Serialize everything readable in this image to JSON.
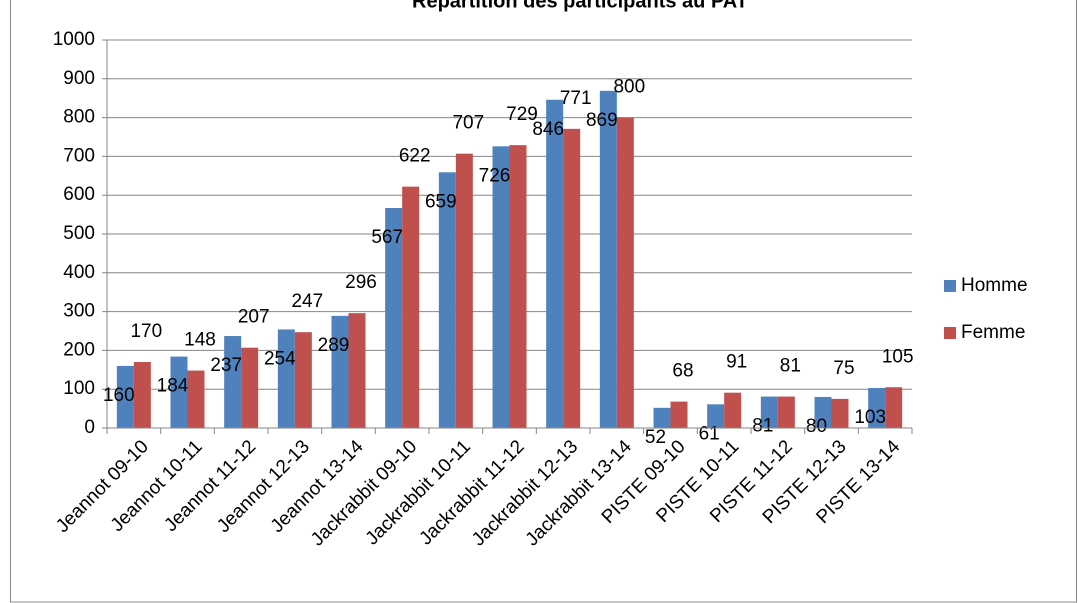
{
  "chart_data": {
    "type": "bar",
    "title": "Répartition des participants au PAT",
    "categories": [
      "Jeannot 09-10",
      "Jeannot 10-11",
      "Jeannot 11-12",
      "Jeannot 12-13",
      "Jeannot 13-14",
      "Jackrabbit 09-10",
      "Jackrabbit 10-11",
      "Jackrabbit 11-12",
      "Jackrabbit 12-13",
      "Jackrabbit 13-14",
      "PISTE 09-10",
      "PISTE 10-11",
      "PISTE 11-12",
      "PISTE 12-13",
      "PISTE 13-14"
    ],
    "series": [
      {
        "name": "Homme",
        "color": "#4f81bd",
        "values": [
          160,
          184,
          237,
          254,
          289,
          567,
          659,
          726,
          846,
          869,
          52,
          61,
          81,
          80,
          103
        ]
      },
      {
        "name": "Femme",
        "color": "#c0504d",
        "values": [
          170,
          148,
          207,
          247,
          296,
          622,
          707,
          729,
          771,
          800,
          68,
          91,
          81,
          75,
          105
        ]
      }
    ],
    "ylim": [
      0,
      1000
    ],
    "yticks": [
      0,
      100,
      200,
      300,
      400,
      500,
      600,
      700,
      800,
      900,
      1000
    ],
    "grid": true,
    "legend": "right"
  }
}
